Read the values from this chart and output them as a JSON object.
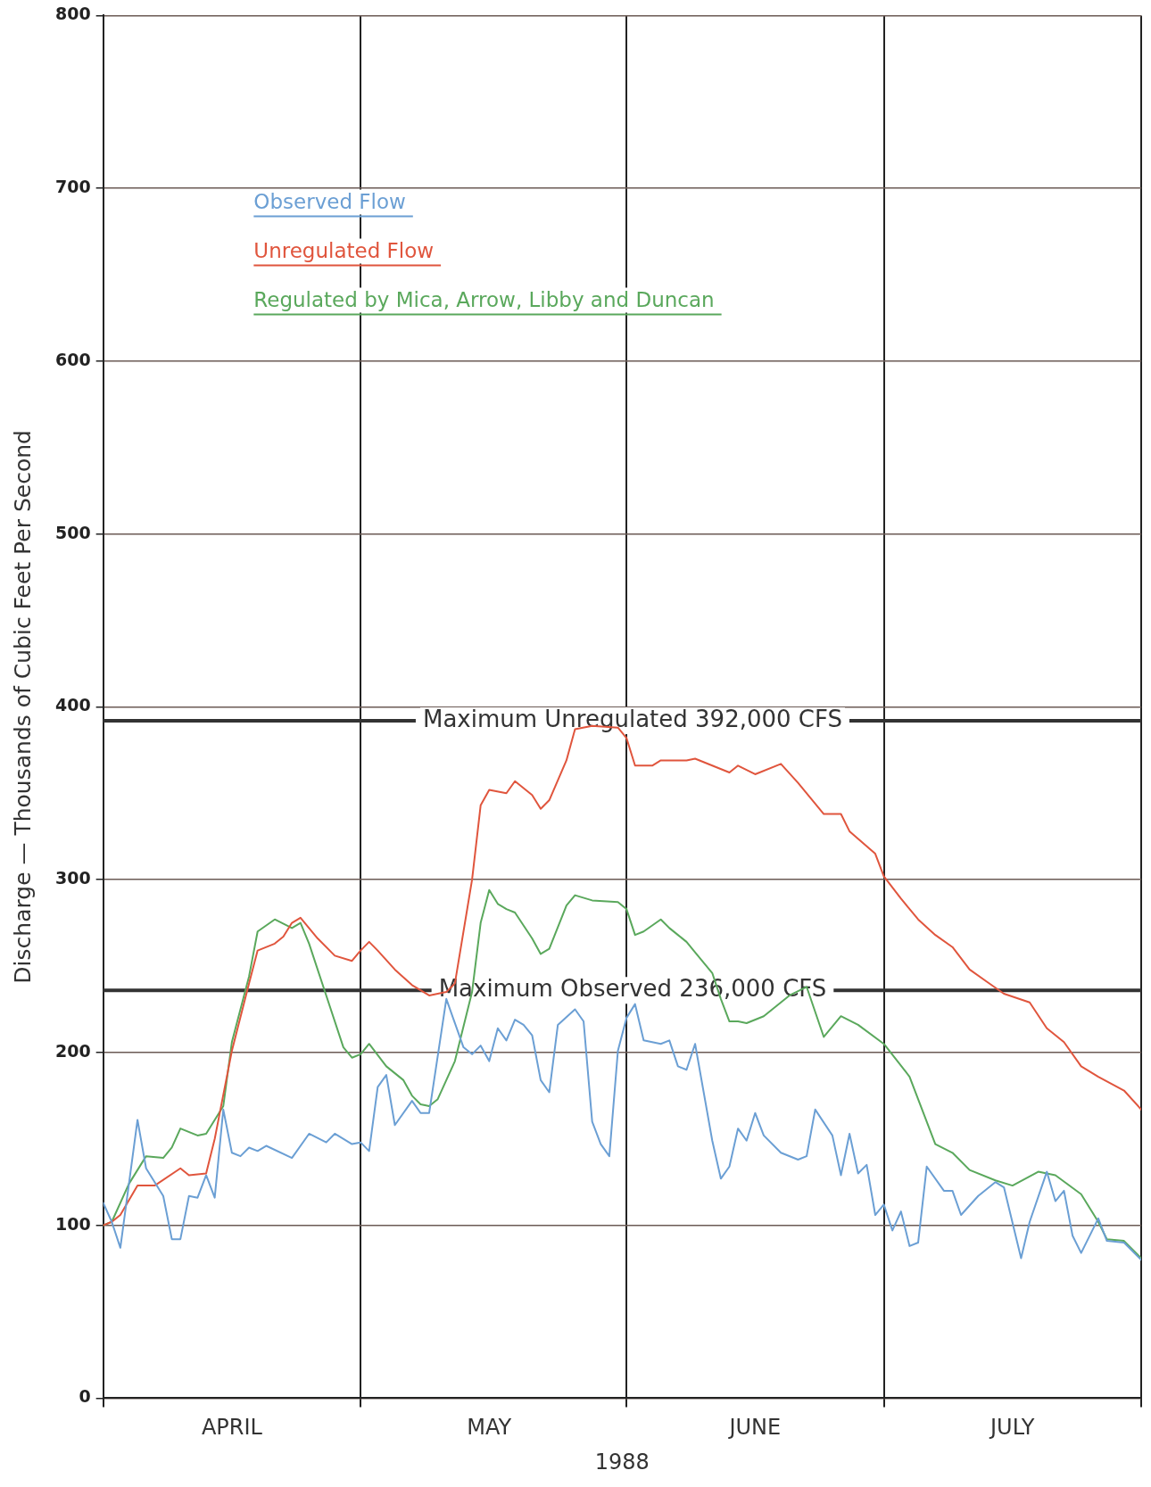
{
  "chart_data": {
    "type": "line",
    "xlabel": "1988",
    "ylabel": "Discharge — Thousands of Cubic Feet Per Second",
    "xlim": [
      "1988-04-01",
      "1988-07-31"
    ],
    "xticks": [
      {
        "value": "1988-04-01",
        "label": null
      },
      {
        "value": "1988-04-16",
        "label": "APRIL"
      },
      {
        "value": "1988-05-01",
        "label": null
      },
      {
        "value": "1988-05-16",
        "label": "MAY"
      },
      {
        "value": "1988-06-01",
        "label": null
      },
      {
        "value": "1988-06-16",
        "label": "JUNE"
      },
      {
        "value": "1988-07-01",
        "label": null
      },
      {
        "value": "1988-07-16",
        "label": "JULY"
      },
      {
        "value": "1988-07-31",
        "label": null
      }
    ],
    "ylim": [
      0,
      800
    ],
    "yticks": [
      0,
      100,
      200,
      300,
      400,
      500,
      600,
      700,
      800
    ],
    "grid": true,
    "legend": "top left",
    "marker": "none",
    "line_style": "solid",
    "ref_lines": [
      {
        "axis": "y",
        "value": 392,
        "label": "Maximum Unregulated 392,000 CFS",
        "color": "#333333"
      },
      {
        "axis": "y",
        "value": 236,
        "label": "Maximum Observed 236,000 CFS",
        "color": "#333333"
      }
    ],
    "series": [
      {
        "name": "Observed Flow",
        "color": "#6b9fd4",
        "x": [
          "1988-04-01",
          "1988-04-02",
          "1988-04-03",
          "1988-04-05",
          "1988-04-06",
          "1988-04-08",
          "1988-04-09",
          "1988-04-10",
          "1988-04-11",
          "1988-04-12",
          "1988-04-13",
          "1988-04-14",
          "1988-04-15",
          "1988-04-16",
          "1988-04-17",
          "1988-04-18",
          "1988-04-19",
          "1988-04-20",
          "1988-04-23",
          "1988-04-25",
          "1988-04-27",
          "1988-04-28",
          "1988-04-30",
          "1988-05-01",
          "1988-05-02",
          "1988-05-03",
          "1988-05-04",
          "1988-05-05",
          "1988-05-07",
          "1988-05-08",
          "1988-05-09",
          "1988-05-11",
          "1988-05-13",
          "1988-05-14",
          "1988-05-15",
          "1988-05-16",
          "1988-05-17",
          "1988-05-18",
          "1988-05-19",
          "1988-05-20",
          "1988-05-21",
          "1988-05-22",
          "1988-05-23",
          "1988-05-24",
          "1988-05-26",
          "1988-05-27",
          "1988-05-28",
          "1988-05-29",
          "1988-05-30",
          "1988-05-31",
          "1988-06-01",
          "1988-06-02",
          "1988-06-03",
          "1988-06-05",
          "1988-06-06",
          "1988-06-07",
          "1988-06-08",
          "1988-06-09",
          "1988-06-11",
          "1988-06-12",
          "1988-06-13",
          "1988-06-14",
          "1988-06-15",
          "1988-06-16",
          "1988-06-17",
          "1988-06-19",
          "1988-06-21",
          "1988-06-22",
          "1988-06-23",
          "1988-06-25",
          "1988-06-26",
          "1988-06-27",
          "1988-06-28",
          "1988-06-29",
          "1988-06-30",
          "1988-07-01",
          "1988-07-02",
          "1988-07-03",
          "1988-07-04",
          "1988-07-05",
          "1988-07-06",
          "1988-07-08",
          "1988-07-09",
          "1988-07-10",
          "1988-07-12",
          "1988-07-14",
          "1988-07-15",
          "1988-07-17",
          "1988-07-18",
          "1988-07-20",
          "1988-07-21",
          "1988-07-22",
          "1988-07-23",
          "1988-07-24",
          "1988-07-26",
          "1988-07-27",
          "1988-07-29",
          "1988-07-31"
        ],
        "values": [
          113,
          102,
          87,
          161,
          133,
          117,
          92,
          92,
          117,
          116,
          129,
          116,
          167,
          142,
          140,
          145,
          143,
          146,
          139,
          153,
          148,
          153,
          147,
          148,
          143,
          180,
          187,
          158,
          172,
          165,
          165,
          231,
          203,
          199,
          204,
          195,
          214,
          207,
          219,
          216,
          210,
          184,
          177,
          216,
          225,
          218,
          160,
          147,
          140,
          201,
          220,
          228,
          207,
          205,
          207,
          192,
          190,
          205,
          149,
          127,
          134,
          156,
          149,
          165,
          152,
          142,
          138,
          140,
          167,
          152,
          129,
          153,
          130,
          135,
          106,
          112,
          97,
          108,
          88,
          90,
          134,
          120,
          120,
          106,
          117,
          125,
          122,
          81,
          102,
          131,
          114,
          120,
          94,
          84,
          104,
          91,
          90,
          80
        ]
      },
      {
        "name": "Unregulated Flow",
        "color": "#e0553d",
        "x": [
          "1988-04-01",
          "1988-04-02",
          "1988-04-03",
          "1988-04-05",
          "1988-04-07",
          "1988-04-10",
          "1988-04-11",
          "1988-04-13",
          "1988-04-14",
          "1988-04-16",
          "1988-04-18",
          "1988-04-19",
          "1988-04-21",
          "1988-04-22",
          "1988-04-23",
          "1988-04-24",
          "1988-04-26",
          "1988-04-28",
          "1988-04-30",
          "1988-05-01",
          "1988-05-02",
          "1988-05-03",
          "1988-05-05",
          "1988-05-07",
          "1988-05-09",
          "1988-05-11",
          "1988-05-12",
          "1988-05-14",
          "1988-05-15",
          "1988-05-16",
          "1988-05-18",
          "1988-05-19",
          "1988-05-21",
          "1988-05-22",
          "1988-05-23",
          "1988-05-25",
          "1988-05-26",
          "1988-05-28",
          "1988-05-31",
          "1988-06-01",
          "1988-06-02",
          "1988-06-04",
          "1988-06-05",
          "1988-06-08",
          "1988-06-09",
          "1988-06-11",
          "1988-06-13",
          "1988-06-14",
          "1988-06-16",
          "1988-06-19",
          "1988-06-21",
          "1988-06-24",
          "1988-06-26",
          "1988-06-27",
          "1988-06-30",
          "1988-07-01",
          "1988-07-03",
          "1988-07-05",
          "1988-07-07",
          "1988-07-09",
          "1988-07-11",
          "1988-07-13",
          "1988-07-15",
          "1988-07-18",
          "1988-07-20",
          "1988-07-22",
          "1988-07-24",
          "1988-07-26",
          "1988-07-29",
          "1988-07-31"
        ],
        "values": [
          100,
          102,
          106,
          123,
          123,
          133,
          129,
          130,
          150,
          201,
          240,
          259,
          263,
          267,
          275,
          278,
          266,
          256,
          253,
          259,
          264,
          259,
          248,
          239,
          233,
          235,
          240,
          300,
          343,
          352,
          350,
          357,
          349,
          341,
          346,
          369,
          387,
          389,
          388,
          382,
          366,
          366,
          369,
          369,
          370,
          366,
          362,
          366,
          361,
          367,
          356,
          338,
          338,
          328,
          315,
          302,
          289,
          277,
          268,
          261,
          248,
          241,
          234,
          229,
          214,
          206,
          192,
          186,
          178,
          167
        ]
      },
      {
        "name": "Regulated by Mica, Arrow, Libby and Duncan",
        "color": "#5aa85c",
        "x": [
          "1988-04-01",
          "1988-04-02",
          "1988-04-04",
          "1988-04-06",
          "1988-04-08",
          "1988-04-09",
          "1988-04-10",
          "1988-04-12",
          "1988-04-13",
          "1988-04-15",
          "1988-04-16",
          "1988-04-18",
          "1988-04-19",
          "1988-04-21",
          "1988-04-23",
          "1988-04-24",
          "1988-04-25",
          "1988-04-27",
          "1988-04-29",
          "1988-04-30",
          "1988-05-01",
          "1988-05-02",
          "1988-05-04",
          "1988-05-06",
          "1988-05-07",
          "1988-05-08",
          "1988-05-09",
          "1988-05-10",
          "1988-05-11",
          "1988-05-12",
          "1988-05-14",
          "1988-05-15",
          "1988-05-16",
          "1988-05-17",
          "1988-05-18",
          "1988-05-19",
          "1988-05-21",
          "1988-05-22",
          "1988-05-23",
          "1988-05-25",
          "1988-05-26",
          "1988-05-28",
          "1988-05-31",
          "1988-06-01",
          "1988-06-02",
          "1988-06-03",
          "1988-06-05",
          "1988-06-06",
          "1988-06-07",
          "1988-06-08",
          "1988-06-09",
          "1988-06-11",
          "1988-06-12",
          "1988-06-13",
          "1988-06-14",
          "1988-06-15",
          "1988-06-17",
          "1988-06-19",
          "1988-06-20",
          "1988-06-22",
          "1988-06-24",
          "1988-06-26",
          "1988-06-28",
          "1988-07-01",
          "1988-07-04",
          "1988-07-07",
          "1988-07-09",
          "1988-07-11",
          "1988-07-14",
          "1988-07-16",
          "1988-07-19",
          "1988-07-21",
          "1988-07-24",
          "1988-07-26",
          "1988-07-27",
          "1988-07-29",
          "1988-07-31"
        ],
        "values": [
          100,
          102,
          124,
          140,
          139,
          145,
          156,
          152,
          153,
          169,
          206,
          244,
          270,
          277,
          272,
          275,
          263,
          233,
          203,
          197,
          199,
          205,
          192,
          184,
          175,
          170,
          169,
          173,
          184,
          195,
          235,
          275,
          294,
          286,
          283,
          281,
          266,
          257,
          260,
          285,
          291,
          288,
          287,
          283,
          268,
          270,
          277,
          272,
          268,
          264,
          258,
          246,
          231,
          218,
          218,
          217,
          221,
          229,
          233,
          238,
          209,
          221,
          216,
          205,
          186,
          147,
          142,
          132,
          126,
          123,
          131,
          129,
          118,
          102,
          92,
          91,
          81
        ]
      }
    ]
  }
}
